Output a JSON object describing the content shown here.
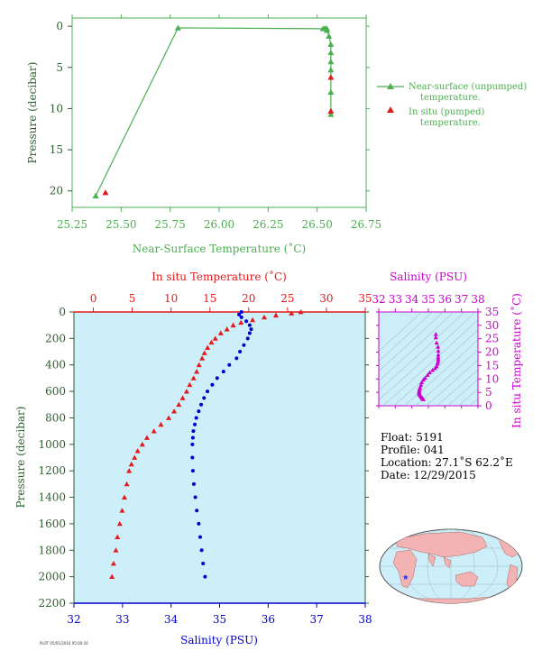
{
  "colors": {
    "green": "#4caf50",
    "dark_green": "#2e5e2e",
    "red": "#e31a1c",
    "blue": "#0000cc",
    "magenta": "#cc00cc",
    "ocean": "#cdeffa"
  },
  "chart_data": [
    {
      "type": "line",
      "xlabel": "Near-Surface Temperature (˚C)",
      "ylabel": "Pressure (decibar)",
      "xlim": [
        25.25,
        26.75
      ],
      "ylim": [
        22,
        -1
      ],
      "xticks": [
        "25.25",
        "25.50",
        "25.75",
        "26.00",
        "26.25",
        "26.50",
        "26.75"
      ],
      "yticks": [
        "0",
        "5",
        "10",
        "15",
        "20"
      ],
      "grid": false,
      "legend_position": "right",
      "series": [
        {
          "name": "Near-surface (unpumped) temperature.",
          "marker": "triangle",
          "x": [
            25.37,
            25.79,
            26.53,
            26.54,
            26.55,
            26.55,
            26.56,
            26.57,
            26.57,
            26.57,
            26.57,
            26.57,
            26.57
          ],
          "y": [
            20.6,
            0.2,
            0.3,
            0.25,
            0.5,
            0.3,
            1.2,
            2.2,
            3.2,
            4.3,
            5.3,
            8.0,
            10.7
          ]
        },
        {
          "name": "In situ (pumped) temperature.",
          "marker": "triangle",
          "x": [
            25.42,
            26.57,
            26.57
          ],
          "y": [
            20.2,
            10.3,
            6.2
          ]
        }
      ]
    },
    {
      "type": "scatter",
      "ylabel": "Pressure (decibar)",
      "ylim": [
        2200,
        0
      ],
      "yticks": [
        "0",
        "200",
        "400",
        "600",
        "800",
        "1000",
        "1200",
        "1400",
        "1600",
        "1800",
        "2000",
        "2200"
      ],
      "bottom_axis": {
        "label": "Salinity (PSU)",
        "lim": [
          32,
          38
        ],
        "ticks": [
          "32",
          "33",
          "34",
          "35",
          "36",
          "37",
          "38"
        ]
      },
      "top_axis": {
        "label": "In situ Temperature (˚C)",
        "lim": [
          -2.5,
          35
        ],
        "ticks": [
          "0",
          "5",
          "10",
          "15",
          "20",
          "25",
          "30",
          "35"
        ]
      },
      "series": [
        {
          "label": "In situ Temperature (˚C)",
          "axis": "top",
          "marker": "triangle",
          "points": [
            [
              26.7,
              0
            ],
            [
              25.5,
              10
            ],
            [
              23.5,
              25
            ],
            [
              22,
              40
            ],
            [
              20.5,
              60
            ],
            [
              19,
              80
            ],
            [
              18,
              100
            ],
            [
              17.2,
              130
            ],
            [
              16.4,
              160
            ],
            [
              15.7,
              200
            ],
            [
              15.2,
              230
            ],
            [
              14.7,
              270
            ],
            [
              14.3,
              310
            ],
            [
              14.0,
              350
            ],
            [
              13.6,
              400
            ],
            [
              13.3,
              450
            ],
            [
              12.9,
              500
            ],
            [
              12.4,
              550
            ],
            [
              12.0,
              600
            ],
            [
              11.5,
              650
            ],
            [
              11.0,
              700
            ],
            [
              10.4,
              750
            ],
            [
              9.7,
              800
            ],
            [
              8.7,
              850
            ],
            [
              7.8,
              900
            ],
            [
              6.9,
              950
            ],
            [
              6.3,
              1000
            ],
            [
              5.7,
              1050
            ],
            [
              5.3,
              1100
            ],
            [
              4.9,
              1150
            ],
            [
              4.6,
              1200
            ],
            [
              4.3,
              1300
            ],
            [
              4.0,
              1400
            ],
            [
              3.7,
              1500
            ],
            [
              3.4,
              1600
            ],
            [
              3.1,
              1700
            ],
            [
              2.9,
              1800
            ],
            [
              2.6,
              1900
            ],
            [
              2.4,
              2000
            ]
          ]
        },
        {
          "label": "Salinity (PSU)",
          "axis": "bottom",
          "marker": "circle",
          "points": [
            [
              35.45,
              0
            ],
            [
              35.4,
              20
            ],
            [
              35.45,
              40
            ],
            [
              35.55,
              70
            ],
            [
              35.62,
              100
            ],
            [
              35.65,
              130
            ],
            [
              35.62,
              160
            ],
            [
              35.58,
              200
            ],
            [
              35.5,
              250
            ],
            [
              35.42,
              300
            ],
            [
              35.35,
              350
            ],
            [
              35.2,
              400
            ],
            [
              35.08,
              450
            ],
            [
              34.95,
              500
            ],
            [
              34.85,
              550
            ],
            [
              34.75,
              600
            ],
            [
              34.68,
              650
            ],
            [
              34.62,
              700
            ],
            [
              34.57,
              750
            ],
            [
              34.52,
              800
            ],
            [
              34.49,
              850
            ],
            [
              34.46,
              900
            ],
            [
              34.45,
              950
            ],
            [
              34.44,
              1000
            ],
            [
              34.44,
              1100
            ],
            [
              34.45,
              1200
            ],
            [
              34.47,
              1300
            ],
            [
              34.5,
              1400
            ],
            [
              34.53,
              1500
            ],
            [
              34.57,
              1600
            ],
            [
              34.6,
              1700
            ],
            [
              34.63,
              1800
            ],
            [
              34.66,
              1900
            ],
            [
              34.7,
              2000
            ]
          ]
        }
      ]
    },
    {
      "type": "scatter",
      "xlabel": "Salinity (PSU)",
      "ylabel": "In situ Temperature (˚C)",
      "xlim": [
        32,
        38
      ],
      "ylim": [
        0,
        35
      ],
      "xticks": [
        "32",
        "33",
        "34",
        "35",
        "36",
        "37",
        "38"
      ],
      "yticks": [
        "0",
        "5",
        "10",
        "15",
        "20",
        "25",
        "30",
        "35"
      ],
      "points": [
        [
          35.45,
          26.7
        ],
        [
          35.45,
          25.5
        ],
        [
          35.5,
          23.5
        ],
        [
          35.58,
          22
        ],
        [
          35.6,
          20.5
        ],
        [
          35.6,
          19
        ],
        [
          35.6,
          18
        ],
        [
          35.6,
          17.2
        ],
        [
          35.58,
          16.4
        ],
        [
          35.55,
          15.7
        ],
        [
          35.5,
          14.7
        ],
        [
          35.4,
          14.0
        ],
        [
          35.25,
          13.3
        ],
        [
          35.08,
          12.4
        ],
        [
          34.95,
          11.5
        ],
        [
          34.8,
          10.4
        ],
        [
          34.7,
          9.7
        ],
        [
          34.6,
          8.7
        ],
        [
          34.55,
          7.8
        ],
        [
          34.5,
          6.9
        ],
        [
          34.47,
          6.3
        ],
        [
          34.45,
          5.7
        ],
        [
          34.44,
          5.3
        ],
        [
          34.44,
          4.9
        ],
        [
          34.45,
          4.6
        ],
        [
          34.47,
          4.3
        ],
        [
          34.5,
          4.0
        ],
        [
          34.53,
          3.7
        ],
        [
          34.57,
          3.4
        ],
        [
          34.6,
          3.1
        ],
        [
          34.63,
          2.9
        ],
        [
          34.66,
          2.6
        ],
        [
          34.7,
          2.4
        ]
      ]
    }
  ],
  "info": {
    "float": "Float:  5191",
    "profile": "Profile:  041",
    "location": "Location:  27.1˚S  62.2˚E",
    "date": "Date:  12/29/2015"
  },
  "footer_stamp": "PLOT 05/01/2016 05:00:16",
  "map": {
    "float_marker_icon": "star-icon",
    "lat": -27.1,
    "lon": 62.2
  }
}
